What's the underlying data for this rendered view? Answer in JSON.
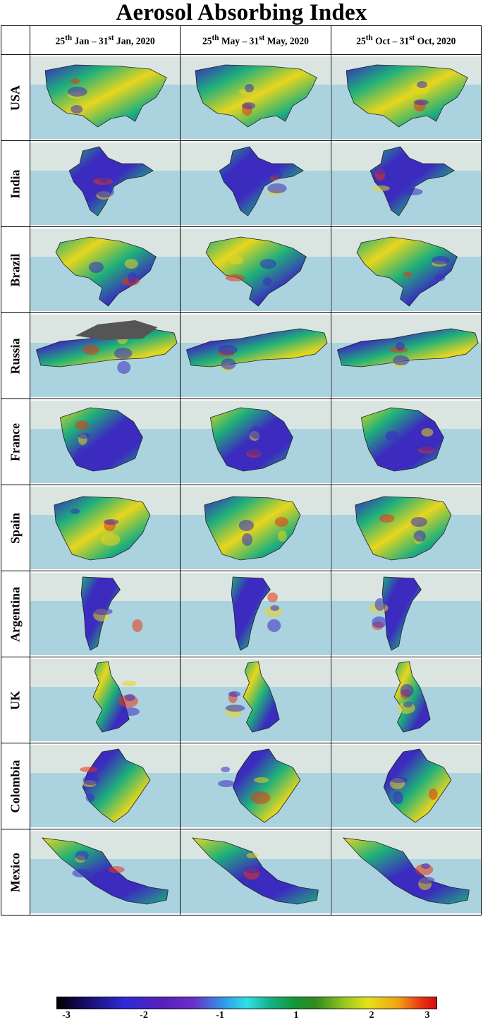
{
  "title": "Aerosol Absorbing Index",
  "columns": [
    {
      "d1": "25",
      "s1": "th",
      "m1": " Jan – 31",
      "s2": "st",
      "m2": " Jan, 2020"
    },
    {
      "d1": "25",
      "s1": "th",
      "m1": " May – 31",
      "s2": "st",
      "m2": " May, 2020"
    },
    {
      "d1": "25",
      "s1": "th",
      "m1": " Oct – 31",
      "s2": "st",
      "m2": " Oct, 2020"
    }
  ],
  "countries": [
    "USA",
    "India",
    "Brazil",
    "Russia",
    "France",
    "Spain",
    "Argentina",
    "UK",
    "Colombia",
    "Mexico"
  ],
  "colorbar": {
    "ticks": [
      "-3",
      "-2",
      "-1",
      "1",
      "2",
      "3"
    ],
    "colors": [
      "#000000",
      "#1a0d6e",
      "#2d2bd6",
      "#6a2fc9",
      "#2fe0e6",
      "#129a3d",
      "#9bc81e",
      "#e6e21a",
      "#f2a014",
      "#d40f0f"
    ]
  },
  "map_colors": {
    "ocean": "#aad3df",
    "land": "#eeece1",
    "low": "#3b2bbf",
    "mid": "#1fb07a",
    "high": "#e8d61e",
    "peak": "#e83412",
    "nodata": "#555555"
  }
}
